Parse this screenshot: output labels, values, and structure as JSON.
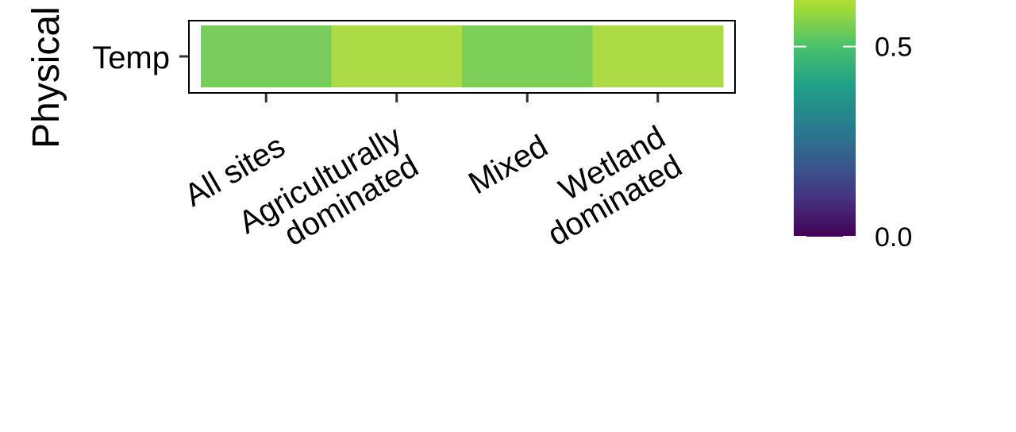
{
  "chart_data": {
    "type": "heatmap",
    "facet_label": "Physical",
    "rows": [
      "Temp"
    ],
    "columns": [
      "All sites",
      "Agriculturally dominated",
      "Mixed",
      "Wetland dominated"
    ],
    "column_label_lines": [
      [
        "All sites"
      ],
      [
        "Agriculturally",
        "dominated"
      ],
      [
        "Mixed"
      ],
      [
        "Wetland",
        "dominated"
      ]
    ],
    "values": [
      [
        0.74,
        0.84,
        0.74,
        0.84
      ]
    ],
    "cell_colors": [
      [
        "#78cd5b",
        "#acdb43",
        "#7bcf59",
        "#acdb43"
      ]
    ],
    "colorbar": {
      "colormap": "viridis",
      "ticks": [
        0.0,
        0.5
      ],
      "tick_labels": [
        "0.0",
        "0.5"
      ],
      "range": [
        0.0,
        0.8
      ]
    },
    "xlabel": "",
    "ylabel": ""
  }
}
